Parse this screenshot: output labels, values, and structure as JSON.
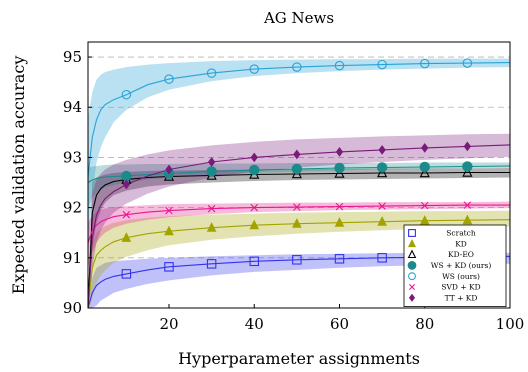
{
  "chart_data": {
    "type": "line",
    "title": "AG News",
    "xlabel": "Hyperparameter assignments",
    "ylabel": "Expected validation accuracy",
    "xlim": [
      1,
      100
    ],
    "ylim": [
      90,
      95.3
    ],
    "xticks": [
      20,
      40,
      60,
      80,
      100
    ],
    "yticks": [
      90,
      91,
      92,
      93,
      94,
      95
    ],
    "grid": "horizontal-dashed",
    "legend_position": "bottom-right",
    "marker_x": [
      10,
      20,
      30,
      40,
      50,
      60,
      70,
      80,
      90
    ],
    "series": [
      {
        "name": "Scratch",
        "color": "#3333ee",
        "marker": "square",
        "x": [
          1,
          2,
          3,
          4,
          5,
          7,
          10,
          15,
          20,
          30,
          40,
          50,
          60,
          70,
          80,
          90,
          100
        ],
        "y": [
          90.0,
          90.3,
          90.45,
          90.52,
          90.57,
          90.63,
          90.68,
          90.76,
          90.82,
          90.88,
          90.93,
          90.96,
          90.98,
          91.0,
          91.01,
          91.02,
          91.03
        ],
        "band_lower": [
          89.9,
          90.0,
          90.05,
          90.15,
          90.2,
          90.3,
          90.38,
          90.48,
          90.55,
          90.65,
          90.72,
          90.76,
          90.8,
          90.83,
          90.85,
          90.87,
          90.88
        ],
        "band_upper": [
          90.1,
          90.6,
          90.8,
          90.85,
          90.9,
          90.93,
          90.95,
          90.98,
          91.0,
          91.03,
          91.05,
          91.07,
          91.08,
          91.09,
          91.1,
          91.1,
          91.1
        ]
      },
      {
        "name": "KD",
        "color": "#a3a300",
        "marker": "triangle",
        "x": [
          1,
          2,
          3,
          4,
          5,
          7,
          10,
          15,
          20,
          30,
          40,
          50,
          60,
          70,
          80,
          90,
          100
        ],
        "y": [
          90.0,
          90.8,
          91.05,
          91.15,
          91.22,
          91.32,
          91.4,
          91.48,
          91.53,
          91.6,
          91.65,
          91.68,
          91.7,
          91.72,
          91.74,
          91.75,
          91.76
        ],
        "band_lower": [
          89.9,
          90.2,
          90.5,
          90.65,
          90.75,
          90.9,
          91.02,
          91.15,
          91.25,
          91.36,
          91.43,
          91.48,
          91.52,
          91.55,
          91.58,
          91.6,
          91.62
        ],
        "band_upper": [
          90.1,
          91.3,
          91.5,
          91.58,
          91.63,
          91.7,
          91.75,
          91.8,
          91.83,
          91.86,
          91.88,
          91.9,
          91.91,
          91.92,
          91.93,
          91.93,
          91.94
        ]
      },
      {
        "name": "KD-EO",
        "color": "#000000",
        "marker": "triangle-open",
        "x": [
          1,
          2,
          3,
          4,
          5,
          7,
          10,
          15,
          20,
          30,
          40,
          50,
          60,
          70,
          80,
          90,
          100
        ],
        "y": [
          90.0,
          91.9,
          92.25,
          92.38,
          92.45,
          92.52,
          92.56,
          92.6,
          92.62,
          92.64,
          92.66,
          92.67,
          92.68,
          92.69,
          92.69,
          92.7,
          92.7
        ],
        "band_lower": [
          89.9,
          91.2,
          91.7,
          91.95,
          92.1,
          92.25,
          92.34,
          92.42,
          92.46,
          92.5,
          92.53,
          92.55,
          92.56,
          92.57,
          92.58,
          92.59,
          92.6
        ],
        "band_upper": [
          90.1,
          92.5,
          92.6,
          92.63,
          92.66,
          92.69,
          92.71,
          92.73,
          92.74,
          92.75,
          92.76,
          92.77,
          92.77,
          92.78,
          92.78,
          92.78,
          92.79
        ]
      },
      {
        "name": "WS + KD (ours)",
        "color": "#1a8a8a",
        "marker": "circle-filled",
        "x": [
          1,
          2,
          3,
          4,
          5,
          7,
          10,
          15,
          20,
          30,
          40,
          50,
          60,
          70,
          80,
          90,
          100
        ],
        "y": [
          92.5,
          92.55,
          92.58,
          92.6,
          92.61,
          92.62,
          92.63,
          92.66,
          92.68,
          92.72,
          92.75,
          92.77,
          92.79,
          92.8,
          92.81,
          92.82,
          92.83
        ],
        "band_lower": [
          92.0,
          92.2,
          92.3,
          92.35,
          92.4,
          92.45,
          92.5,
          92.56,
          92.6,
          92.65,
          92.69,
          92.72,
          92.74,
          92.76,
          92.77,
          92.78,
          92.79
        ],
        "band_upper": [
          92.8,
          92.82,
          92.83,
          92.84,
          92.85,
          92.86,
          92.86,
          92.87,
          92.87,
          92.88,
          92.88,
          92.89,
          92.89,
          92.89,
          92.9,
          92.9,
          92.9
        ]
      },
      {
        "name": "WS (ours)",
        "color": "#29a3d6",
        "marker": "circle-open",
        "x": [
          1,
          2,
          3,
          4,
          5,
          7,
          10,
          15,
          20,
          30,
          40,
          50,
          60,
          70,
          80,
          90,
          100
        ],
        "y": [
          92.6,
          93.4,
          93.75,
          93.95,
          94.05,
          94.15,
          94.25,
          94.45,
          94.56,
          94.68,
          94.76,
          94.8,
          94.83,
          94.85,
          94.87,
          94.88,
          94.89
        ],
        "band_lower": [
          91.0,
          92.3,
          92.9,
          93.2,
          93.4,
          93.7,
          93.95,
          94.2,
          94.35,
          94.52,
          94.62,
          94.68,
          94.72,
          94.75,
          94.77,
          94.79,
          94.8
        ],
        "band_upper": [
          93.8,
          94.3,
          94.55,
          94.65,
          94.7,
          94.75,
          94.8,
          94.85,
          94.88,
          94.92,
          94.94,
          94.95,
          94.96,
          94.96,
          94.97,
          94.97,
          94.97
        ]
      },
      {
        "name": "SVD + KD",
        "color": "#e6198c",
        "marker": "cross",
        "x": [
          1,
          2,
          3,
          4,
          5,
          7,
          10,
          15,
          20,
          30,
          40,
          50,
          60,
          70,
          80,
          90,
          100
        ],
        "y": [
          91.3,
          91.55,
          91.65,
          91.72,
          91.76,
          91.82,
          91.86,
          91.91,
          91.94,
          91.98,
          92.0,
          92.01,
          92.02,
          92.03,
          92.04,
          92.05,
          92.05
        ],
        "band_lower": [
          90.8,
          91.1,
          91.3,
          91.42,
          91.5,
          91.6,
          91.68,
          91.76,
          91.81,
          91.87,
          91.91,
          91.93,
          91.95,
          91.96,
          91.97,
          91.98,
          91.99
        ],
        "band_upper": [
          91.7,
          91.85,
          91.92,
          91.96,
          91.98,
          92.01,
          92.03,
          92.05,
          92.07,
          92.08,
          92.09,
          92.1,
          92.1,
          92.11,
          92.11,
          92.11,
          92.12
        ]
      },
      {
        "name": "TT + KD",
        "color": "#7a1a7a",
        "marker": "diamond",
        "x": [
          1,
          2,
          3,
          4,
          5,
          7,
          10,
          15,
          20,
          30,
          40,
          50,
          60,
          70,
          80,
          90,
          100
        ],
        "y": [
          90.0,
          91.4,
          91.85,
          92.05,
          92.18,
          92.32,
          92.46,
          92.63,
          92.76,
          92.91,
          93.0,
          93.06,
          93.11,
          93.15,
          93.19,
          93.22,
          93.25
        ],
        "band_lower": [
          89.9,
          90.8,
          91.3,
          91.55,
          91.7,
          91.9,
          92.08,
          92.28,
          92.42,
          92.6,
          92.72,
          92.8,
          92.86,
          92.91,
          92.95,
          92.98,
          93.01
        ],
        "band_upper": [
          90.1,
          92.3,
          92.55,
          92.68,
          92.76,
          92.86,
          92.95,
          93.06,
          93.14,
          93.24,
          93.31,
          93.36,
          93.39,
          93.42,
          93.44,
          93.46,
          93.47
        ]
      }
    ]
  }
}
